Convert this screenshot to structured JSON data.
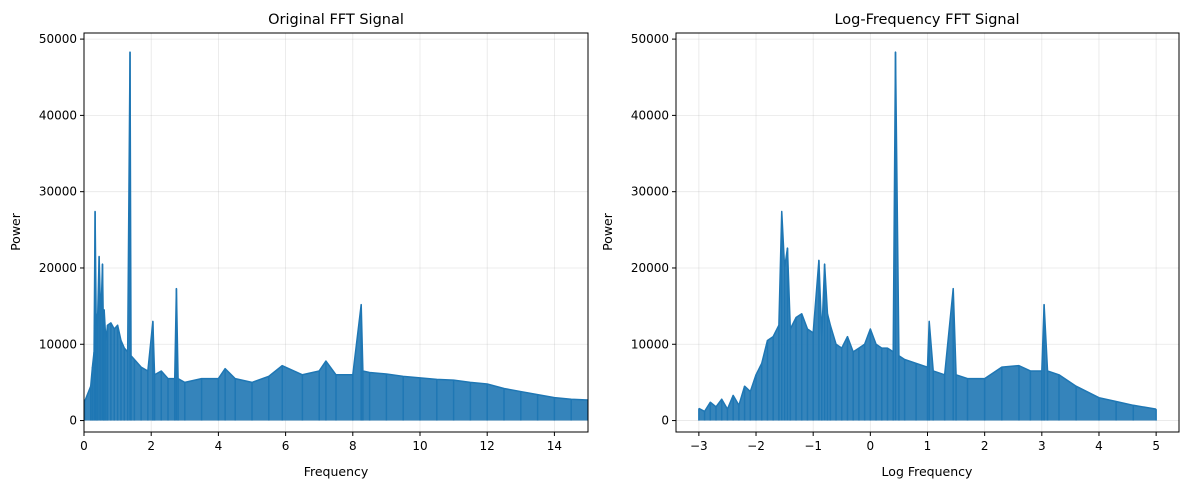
{
  "chart_data": [
    {
      "type": "line",
      "title": "Original FFT Signal",
      "xlabel": "Frequency",
      "ylabel": "Power",
      "xlim": [
        0,
        15
      ],
      "ylim": [
        -1500,
        50800
      ],
      "xticks": [
        0,
        2,
        4,
        6,
        8,
        10,
        12,
        14
      ],
      "yticks": [
        0,
        10000,
        20000,
        30000,
        40000,
        50000
      ],
      "grid": true,
      "color": "#1f77b4",
      "series": [
        {
          "x": [
            0.02,
            0.2,
            0.25,
            0.3,
            0.33,
            0.36,
            0.4,
            0.45,
            0.5,
            0.55,
            0.58,
            0.6,
            0.65,
            0.7,
            0.8,
            0.9,
            1.0,
            1.1,
            1.2,
            1.3,
            1.37,
            1.4,
            1.5,
            1.7,
            1.9,
            2.05,
            2.1,
            2.3,
            2.5,
            2.7,
            2.75,
            2.8,
            3.0,
            3.5,
            4.0,
            4.2,
            4.5,
            5.0,
            5.5,
            5.9,
            6.5,
            7.0,
            7.2,
            7.5,
            8.0,
            8.25,
            8.3,
            8.5,
            9.0,
            9.5,
            10.0,
            10.5,
            11.0,
            11.5,
            12.0,
            12.5,
            13.0,
            13.5,
            14.0,
            14.5,
            15.0
          ],
          "y": [
            2500,
            4500,
            7000,
            9000,
            27400,
            14000,
            12500,
            21500,
            13000,
            20500,
            11000,
            14500,
            10500,
            12500,
            12800,
            12000,
            12500,
            10500,
            9500,
            9000,
            48300,
            8500,
            8000,
            7000,
            6500,
            13000,
            6000,
            6500,
            5500,
            5500,
            17300,
            5500,
            5000,
            5500,
            5500,
            6800,
            5500,
            5000,
            5800,
            7200,
            6000,
            6500,
            7800,
            6000,
            6000,
            15200,
            6500,
            6300,
            6100,
            5800,
            5600,
            5400,
            5300,
            5000,
            4800,
            4200,
            3800,
            3400,
            3000,
            2800,
            2700
          ]
        }
      ]
    },
    {
      "type": "line",
      "title": "Log-Frequency FFT Signal",
      "xlabel": "Log Frequency",
      "ylabel": "Power",
      "xlim": [
        -3.4,
        5.4
      ],
      "ylim": [
        -1500,
        50800
      ],
      "xticks": [
        -3,
        -2,
        -1,
        0,
        1,
        2,
        3,
        4,
        5
      ],
      "yticks": [
        0,
        10000,
        20000,
        30000,
        40000,
        50000
      ],
      "grid": true,
      "color": "#1f77b4",
      "series": [
        {
          "x": [
            -3.0,
            -2.9,
            -2.8,
            -2.7,
            -2.6,
            -2.5,
            -2.4,
            -2.3,
            -2.2,
            -2.1,
            -2.0,
            -1.9,
            -1.8,
            -1.7,
            -1.6,
            -1.55,
            -1.5,
            -1.45,
            -1.4,
            -1.3,
            -1.2,
            -1.1,
            -1.0,
            -0.9,
            -0.85,
            -0.8,
            -0.75,
            -0.7,
            -0.6,
            -0.5,
            -0.4,
            -0.3,
            -0.2,
            -0.1,
            0.0,
            0.1,
            0.2,
            0.3,
            0.4,
            0.44,
            0.5,
            0.6,
            0.8,
            1.0,
            1.03,
            1.1,
            1.3,
            1.45,
            1.5,
            1.7,
            2.0,
            2.3,
            2.6,
            2.8,
            3.0,
            3.04,
            3.1,
            3.3,
            3.6,
            4.0,
            4.3,
            4.6,
            5.0
          ],
          "y": [
            1600,
            1200,
            2400,
            1800,
            2800,
            1500,
            3300,
            2000,
            4500,
            3800,
            6000,
            7500,
            10500,
            11000,
            12500,
            27400,
            20000,
            22600,
            12000,
            13500,
            14000,
            12000,
            11500,
            21000,
            11000,
            20500,
            14000,
            12500,
            10000,
            9500,
            11000,
            9000,
            9500,
            10000,
            12000,
            10000,
            9500,
            9500,
            9000,
            48300,
            8500,
            8000,
            7500,
            7000,
            13000,
            6500,
            6000,
            17300,
            6000,
            5500,
            5500,
            7000,
            7200,
            6500,
            6500,
            15200,
            6500,
            6000,
            4500,
            3000,
            2500,
            2000,
            1500
          ]
        }
      ]
    }
  ]
}
